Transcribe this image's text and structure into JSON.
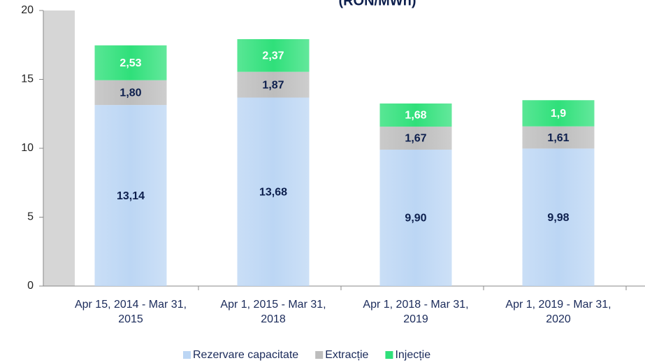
{
  "chart_data": {
    "type": "stacked_bar",
    "title": "(RON/MWh)",
    "categories": [
      "Apr 15, 2014 - Mar 31, 2015",
      "Apr 1, 2015 - Mar 31, 2018",
      "Apr 1, 2018 - Mar 31, 2019",
      "Apr 1, 2019 - Mar 31, 2020"
    ],
    "series": [
      {
        "name": "Rezervare capacitate",
        "color": "#bcd6f4",
        "values": [
          13.14,
          13.68,
          9.9,
          9.98
        ],
        "value_labels": [
          "13,14",
          "13,68",
          "9,90",
          "9,98"
        ],
        "label_color": "#0d1f4d"
      },
      {
        "name": "Extracție",
        "color": "#bdbdbd",
        "values": [
          1.8,
          1.87,
          1.67,
          1.61
        ],
        "value_labels": [
          "1,80",
          "1,87",
          "1,67",
          "1,61"
        ],
        "label_color": "#0d1f4d"
      },
      {
        "name": "Injecție",
        "color": "#2fe07a",
        "values": [
          2.53,
          2.37,
          1.68,
          1.9
        ],
        "value_labels": [
          "2,53",
          "2,37",
          "1,68",
          "1,9"
        ],
        "label_color": "#ffffff"
      }
    ],
    "ylim": [
      0,
      20
    ],
    "yticks": [
      0,
      5,
      10,
      15,
      20
    ],
    "legend": "bottom"
  }
}
